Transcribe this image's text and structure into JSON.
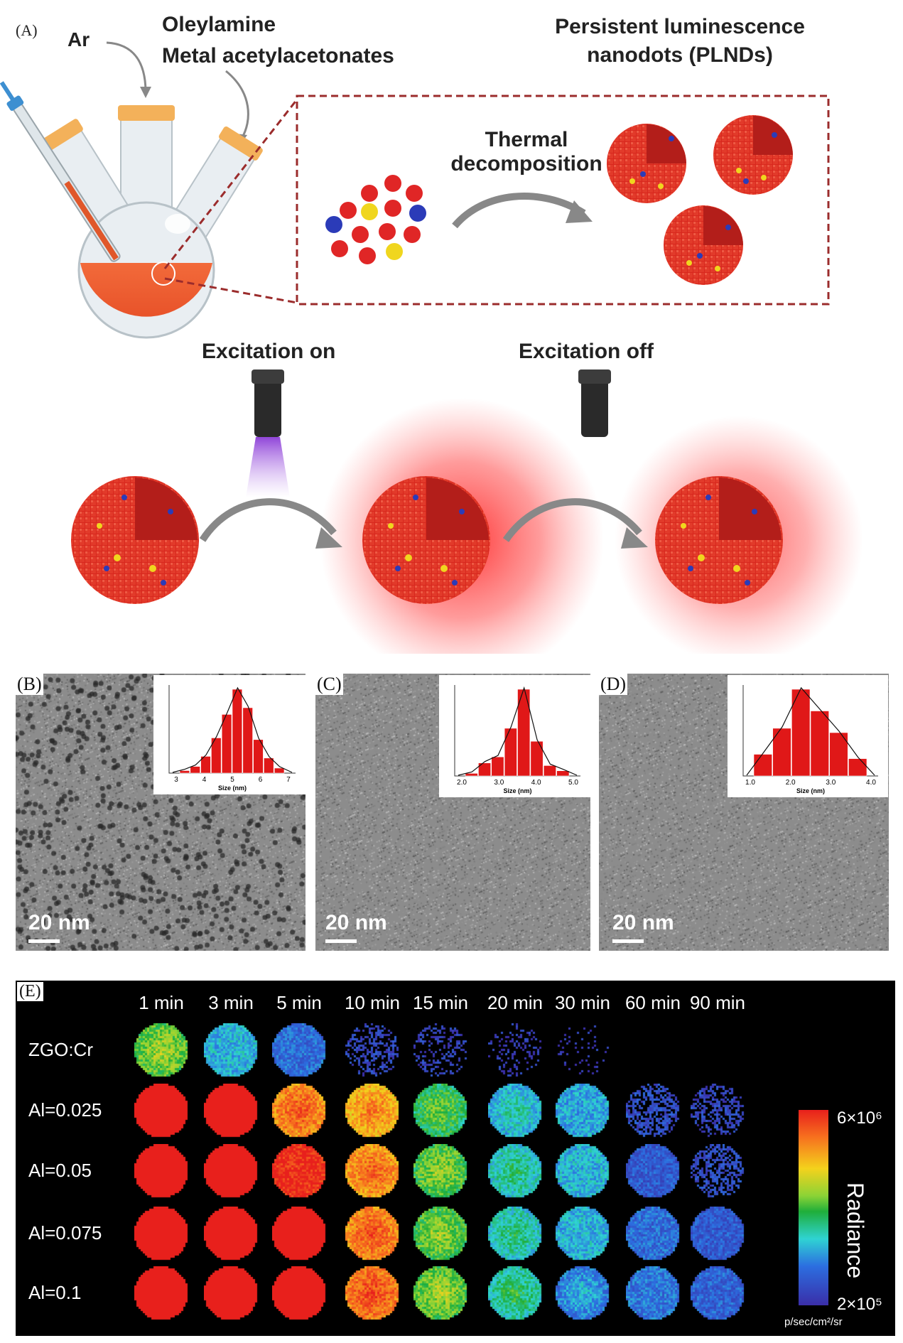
{
  "panel_a": {
    "label": "(A)",
    "gas": "Ar",
    "reagent_1": "Oleylamine",
    "reagent_2": "Metal acetylacetonates",
    "product_line1": "Persistent luminescence",
    "product_line2": "nanodots (PLNDs)",
    "process_line1": "Thermal",
    "process_line2": "decomposition",
    "excitation_on": "Excitation on",
    "excitation_off": "Excitation off"
  },
  "tem_panels": [
    {
      "label": "(B)",
      "scale": "20 nm",
      "hist_xlabel": "Size (nm)",
      "ticks": [
        "3",
        "4",
        "5",
        "6",
        "7"
      ],
      "bars": [
        0.03,
        0.08,
        0.2,
        0.42,
        0.7,
        1.0,
        0.78,
        0.4,
        0.18,
        0.06
      ]
    },
    {
      "label": "(C)",
      "scale": "20 nm",
      "hist_xlabel": "Size (nm)",
      "ticks": [
        "2.0",
        "3.0",
        "4.0",
        "5.0"
      ],
      "bars": [
        0.03,
        0.15,
        0.22,
        0.55,
        1.0,
        0.4,
        0.12,
        0.06
      ]
    },
    {
      "label": "(D)",
      "scale": "20 nm",
      "hist_xlabel": "Size (nm)",
      "ticks": [
        "1.0",
        "2.0",
        "3.0",
        "4.0"
      ],
      "bars": [
        0.25,
        0.55,
        1.0,
        0.75,
        0.5,
        0.2
      ]
    }
  ],
  "panel_e": {
    "label": "(E)",
    "times": [
      "1 min",
      "3 min",
      "5 min",
      "10 min",
      "15 min",
      "20 min",
      "30 min",
      "60 min",
      "90 min"
    ],
    "rows": [
      {
        "name": "ZGO:Cr",
        "levels": [
          0.62,
          0.3,
          0.18,
          0.08,
          0.06,
          0.04,
          0.02,
          null,
          null
        ]
      },
      {
        "name": "Al=0.025",
        "levels": [
          1,
          1,
          0.92,
          0.85,
          0.55,
          0.4,
          0.28,
          0.1,
          0.08
        ]
      },
      {
        "name": "Al=0.05",
        "levels": [
          1,
          1,
          0.98,
          0.9,
          0.6,
          0.45,
          0.3,
          0.14,
          0.1
        ]
      },
      {
        "name": "Al=0.075",
        "levels": [
          1,
          1,
          1,
          0.92,
          0.6,
          0.45,
          0.3,
          0.18,
          0.14
        ]
      },
      {
        "name": "Al=0.1",
        "levels": [
          1,
          1,
          1,
          0.95,
          0.62,
          0.48,
          0.32,
          0.2,
          0.16
        ]
      }
    ],
    "colorbar_max": "6×10⁶",
    "colorbar_min": "2×10⁵",
    "colorbar_title": "Radiance",
    "units": "p/sec/cm²/sr"
  }
}
